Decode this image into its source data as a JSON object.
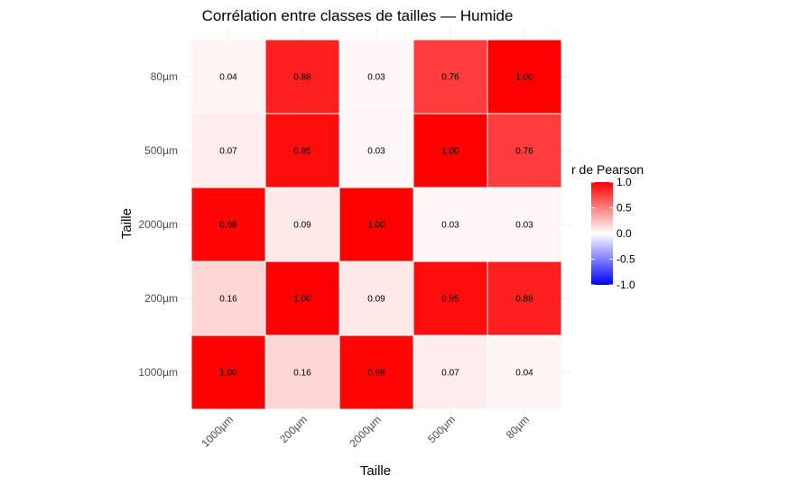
{
  "chart_data": {
    "type": "heatmap",
    "title": "Corrélation entre classes de tailles — Humide",
    "xlabel": "Taille",
    "ylabel": "Taille",
    "x_categories": [
      "1000µm",
      "200µm",
      "2000µm",
      "500µm",
      "80µm"
    ],
    "y_categories": [
      "1000µm",
      "200µm",
      "2000µm",
      "500µm",
      "80µm"
    ],
    "values": [
      [
        1.0,
        0.16,
        0.98,
        0.07,
        0.04
      ],
      [
        0.16,
        1.0,
        0.09,
        0.95,
        0.88
      ],
      [
        0.98,
        0.09,
        1.0,
        0.03,
        0.03
      ],
      [
        0.07,
        0.95,
        0.03,
        1.0,
        0.76
      ],
      [
        0.04,
        0.88,
        0.03,
        0.76,
        1.0
      ]
    ],
    "value_format": "2 decimals",
    "legend": {
      "title": "r de Pearson",
      "range": [
        -1,
        1
      ],
      "ticks": [
        "1.0",
        "0.5",
        "0.0",
        "-0.5",
        "-1.0"
      ],
      "tick_values": [
        1.0,
        0.5,
        0.0,
        -0.5,
        -1.0
      ],
      "placement": "right"
    },
    "colors": {
      "low": "#0000ff",
      "mid": "#ffffff",
      "high": "#ff0000"
    },
    "grid": true
  }
}
